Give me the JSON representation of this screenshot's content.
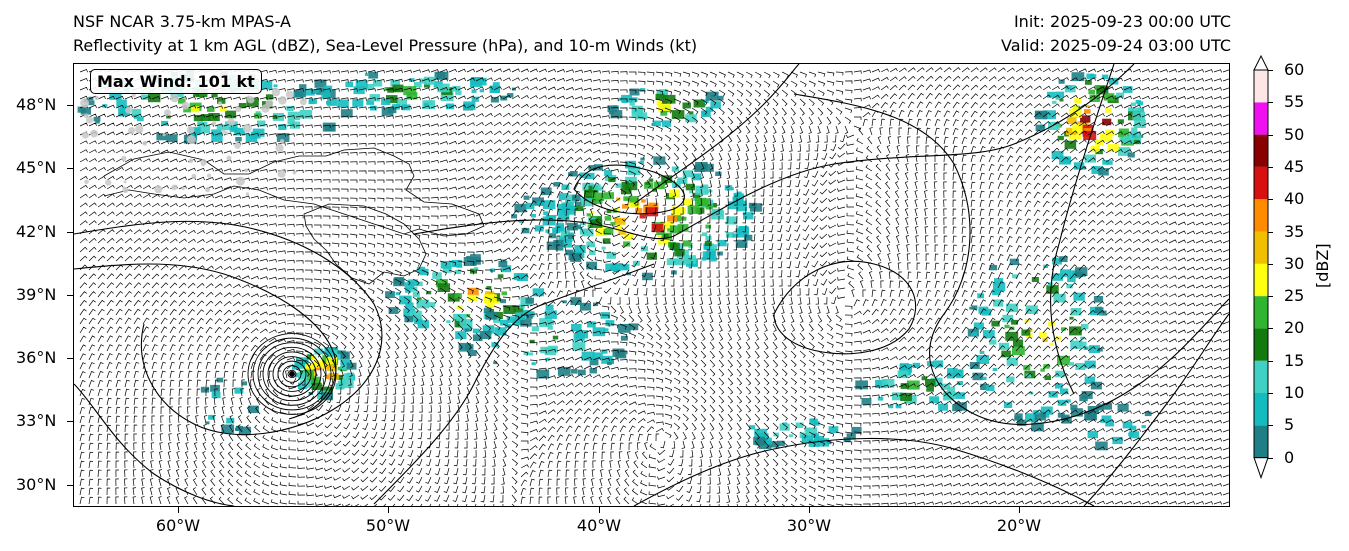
{
  "titles": {
    "left_line1": "NSF NCAR 3.75-km MPAS-A",
    "left_line2": "Reflectivity at 1 km AGL (dBZ), Sea-Level Pressure (hPa), and 10-m Winds (kt)",
    "right_line1": "Init: 2025-09-23 00:00 UTC",
    "right_line2": "Valid: 2025-09-24 03:00 UTC"
  },
  "max_wind_label": "Max Wind: 101 kt",
  "lat_labels": [
    "48°N",
    "45°N",
    "42°N",
    "39°N",
    "36°N",
    "33°N",
    "30°N"
  ],
  "lon_labels": [
    "60°W",
    "50°W",
    "40°W",
    "30°W",
    "20°W"
  ],
  "colorbar": {
    "title": "[dBZ]",
    "ticks": [
      "0",
      "5",
      "10",
      "15",
      "20",
      "25",
      "30",
      "35",
      "40",
      "45",
      "50",
      "55",
      "60"
    ],
    "colors": [
      "#1f7f86",
      "#14bcc0",
      "#3fd1c4",
      "#137a10",
      "#2fb52f",
      "#ffff10",
      "#f0c000",
      "#ff8c00",
      "#d81010",
      "#880000",
      "#f010f0",
      "#ffe6e6"
    ]
  },
  "map": {
    "extent": {
      "lon": [
        -65,
        -10
      ],
      "lat": [
        29,
        50
      ]
    },
    "hurricane_center": {
      "lon": -54.7,
      "lat": 35.2
    },
    "layers": [
      "reflectivity",
      "sea-level-pressure-contours",
      "10m-wind-barbs",
      "coastlines"
    ]
  }
}
